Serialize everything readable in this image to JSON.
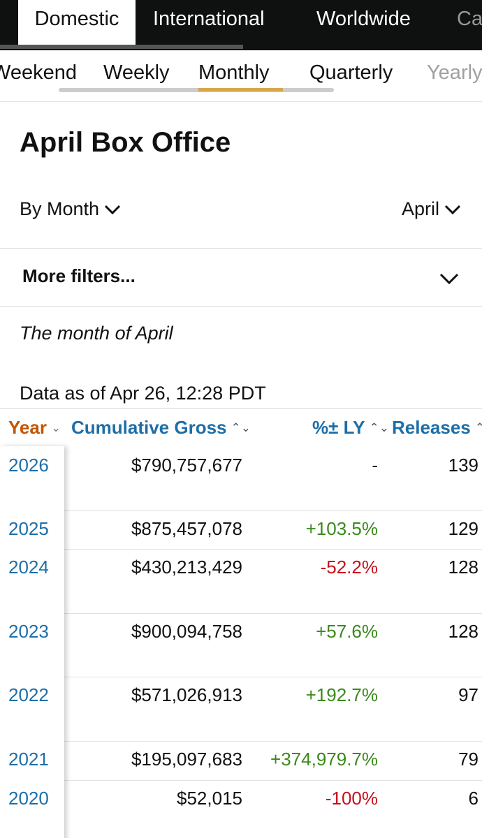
{
  "top_tabs": [
    {
      "label": "Domestic",
      "active": true
    },
    {
      "label": "International",
      "active": false
    },
    {
      "label": "Worldwide",
      "active": false
    },
    {
      "label": "Ca",
      "active": false
    }
  ],
  "sub_tabs": [
    {
      "label": "Weekend",
      "active": false
    },
    {
      "label": "Weekly",
      "active": false
    },
    {
      "label": "Monthly",
      "active": true
    },
    {
      "label": "Quarterly",
      "active": false
    },
    {
      "label": "Yearly",
      "active": false
    }
  ],
  "page_title": "April Box Office",
  "filters": {
    "by_label": "By Month",
    "month_label": "April",
    "more_filters_label": "More filters..."
  },
  "month_note": "The month of April",
  "data_as_of": "Data as of Apr 26, 12:28 PDT",
  "table": {
    "headers": {
      "year": "Year",
      "cumulative_gross": "Cumulative Gross",
      "pct_ly": "%± LY",
      "releases": "Releases"
    },
    "rows": [
      {
        "year": "2026",
        "gross": "$790,757,677",
        "pct": "-",
        "pct_type": "neutral",
        "releases": "139"
      },
      {
        "year": "2025",
        "gross": "$875,457,078",
        "pct": "+103.5%",
        "pct_type": "pos",
        "releases": "129"
      },
      {
        "year": "2024",
        "gross": "$430,213,429",
        "pct": "-52.2%",
        "pct_type": "neg",
        "releases": "128"
      },
      {
        "year": "2023",
        "gross": "$900,094,758",
        "pct": "+57.6%",
        "pct_type": "pos",
        "releases": "128"
      },
      {
        "year": "2022",
        "gross": "$571,026,913",
        "pct": "+192.7%",
        "pct_type": "pos",
        "releases": "97"
      },
      {
        "year": "2021",
        "gross": "$195,097,683",
        "pct": "+374,979.7%",
        "pct_type": "pos",
        "releases": "79"
      },
      {
        "year": "2020",
        "gross": "$52,015",
        "pct": "-100%",
        "pct_type": "neg",
        "releases": "6"
      }
    ]
  },
  "colors": {
    "link_blue": "#1d6ea8",
    "sorted_orange": "#c45500",
    "positive_green": "#3a8a1b",
    "negative_red": "#c7101a",
    "active_underline": "#d7a64a",
    "nav_background": "#0f1111"
  },
  "icons": {
    "dropdown": "chevron-down-icon",
    "sort": "sort-icon"
  }
}
